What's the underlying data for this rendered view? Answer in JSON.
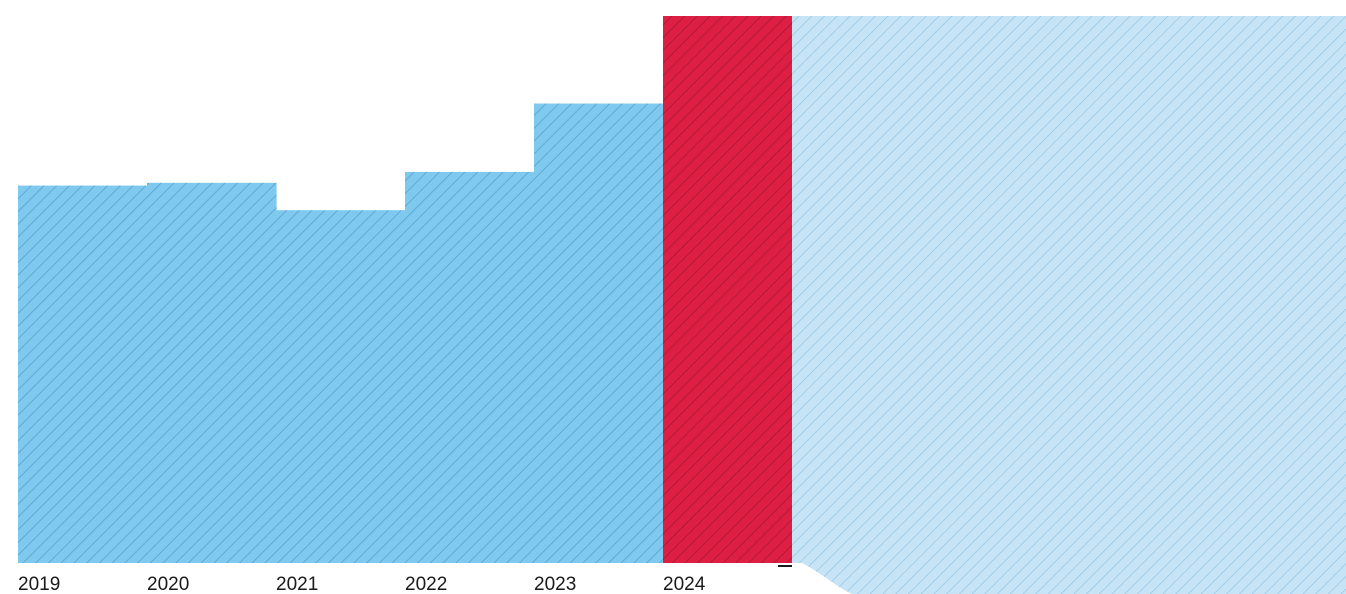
{
  "chart_data": {
    "type": "bar",
    "categories": [
      "2019",
      "2020",
      "2021",
      "2022",
      "2023",
      "2024"
    ],
    "values": [
      69,
      69.5,
      64.5,
      71.5,
      84,
      100
    ],
    "ylim": [
      0,
      100
    ],
    "grid": false,
    "highlight_category": "2024",
    "colors": {
      "bar": "#7fc8ee",
      "highlight": "#dc1f42",
      "background_area": "#c6e4f6",
      "hatch": "#4f9fcd",
      "hatch_highlight": "#a61530",
      "hatch_background": "#8dbfe0"
    }
  }
}
